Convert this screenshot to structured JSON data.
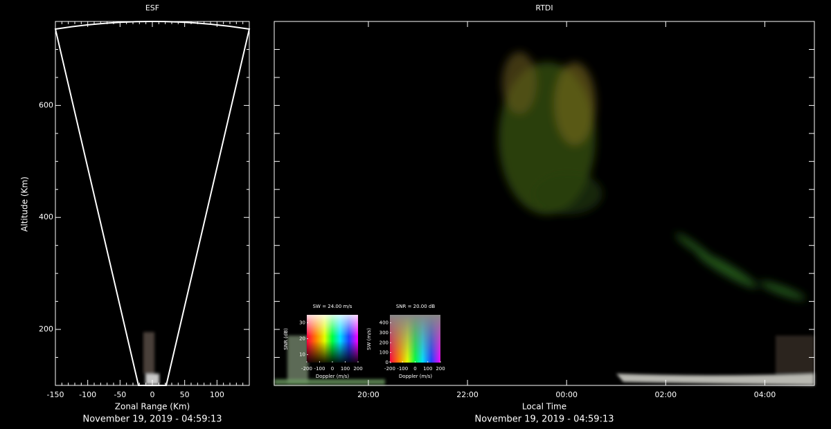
{
  "chart_data": [
    {
      "type": "heatmap",
      "title": "ESF",
      "xlabel": "Zonal Range (Km)",
      "ylabel": "Altitude (Km)",
      "caption": "November 19, 2019 - 04:59:13",
      "xlim": [
        -150,
        150
      ],
      "xticks": [
        -150,
        -100,
        -50,
        0,
        50,
        100
      ],
      "xticks_minor": [
        -140,
        -130,
        -120,
        -110,
        -90,
        -80,
        -70,
        -60,
        -40,
        -30,
        -20,
        -10,
        10,
        20,
        30,
        40,
        60,
        70,
        80,
        90,
        110,
        120,
        130,
        140,
        150
      ],
      "ylim": [
        100,
        750
      ],
      "yticks": [
        200,
        400,
        600
      ],
      "yticks_minor": [
        150,
        250,
        300,
        350,
        450,
        500,
        550,
        650,
        700,
        750
      ]
    },
    {
      "type": "heatmap",
      "title": "RTDI",
      "xlabel": "Local Time",
      "caption": "November 19, 2019 - 04:59:13",
      "xlim": [
        18.1,
        29.0
      ],
      "xticks": [
        {
          "value": 20,
          "label": "20:00"
        },
        {
          "value": 22,
          "label": "22:00"
        },
        {
          "value": 24,
          "label": "00:00"
        },
        {
          "value": 26,
          "label": "02:00"
        },
        {
          "value": 28,
          "label": "04:00"
        }
      ],
      "ylim": [
        100,
        750
      ],
      "yticks_minor": [
        150,
        200,
        250,
        300,
        350,
        400,
        450,
        500,
        550,
        600,
        650,
        700,
        750
      ]
    },
    {
      "type": "colorbar",
      "title": "SW = 24.00 m/s",
      "xlabel": "Doppler (m/s)",
      "ylabel": "SNR (dB)",
      "colormap": "snr",
      "xlim": [
        -200,
        200
      ],
      "xticks": [
        -200,
        -100,
        0,
        100,
        200
      ],
      "ylim": [
        5,
        35
      ],
      "yticks": [
        10,
        20,
        30
      ]
    },
    {
      "type": "colorbar",
      "title": "SNR = 20.00 dB",
      "xlabel": "Doppler (m/s)",
      "ylabel": "SW (m/s)",
      "colormap": "sw",
      "xlim": [
        -200,
        200
      ],
      "xticks": [
        -200,
        -100,
        0,
        100,
        200
      ],
      "ylim": [
        0,
        480
      ],
      "yticks": [
        0,
        100,
        200,
        300,
        400
      ]
    }
  ]
}
